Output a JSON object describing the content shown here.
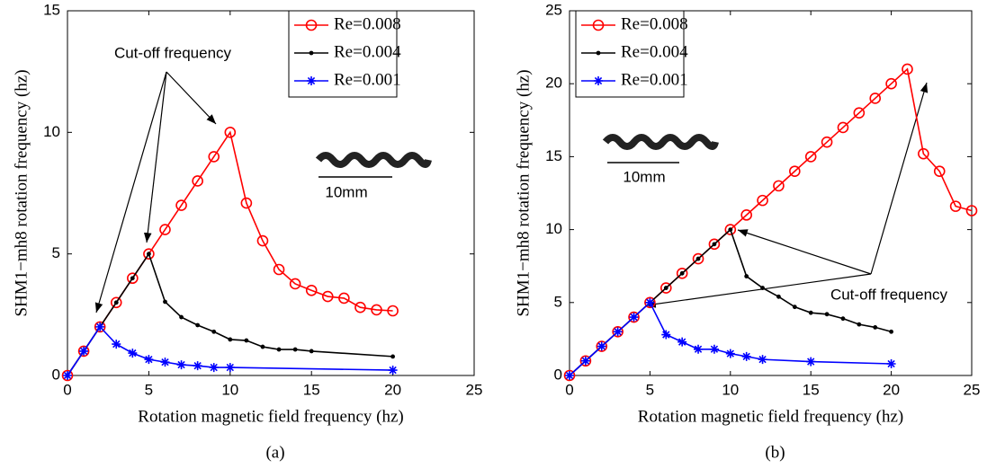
{
  "chart_data": [
    {
      "type": "line",
      "caption": "(a)",
      "xlabel": "Rotation magnetic field frequency (hz)",
      "ylabel": "SHM1−mh8 rotation frequency (hz)",
      "xlim": [
        0,
        25
      ],
      "ylim": [
        0,
        15
      ],
      "xticks": [
        0,
        5,
        10,
        15,
        20,
        25
      ],
      "yticks": [
        0,
        5,
        10,
        15
      ],
      "legend": "upper right",
      "annotation": "Cut-off frequency",
      "scale_bar_label": "10mm",
      "series": [
        {
          "name": "Re=0.008",
          "color": "#ff0000",
          "marker": "o",
          "x": [
            0,
            1,
            2,
            3,
            4,
            5,
            6,
            7,
            8,
            9,
            10,
            11,
            12,
            13,
            14,
            15,
            16,
            17,
            18,
            19,
            20
          ],
          "values": [
            0,
            1,
            2,
            3,
            4,
            5,
            6,
            7,
            8,
            9,
            10,
            7.09,
            5.54,
            4.36,
            3.77,
            3.5,
            3.25,
            3.18,
            2.8,
            2.7,
            2.66
          ]
        },
        {
          "name": "Re=0.004",
          "color": "#000000",
          "marker": ".",
          "x": [
            0,
            1,
            2,
            3,
            4,
            5,
            6,
            7,
            8,
            9,
            10,
            11,
            12,
            13,
            14,
            15,
            20
          ],
          "values": [
            0,
            1,
            2,
            3,
            4,
            5,
            3.03,
            2.4,
            2.07,
            1.8,
            1.48,
            1.44,
            1.18,
            1.07,
            1.07,
            1.0,
            0.78
          ]
        },
        {
          "name": "Re=0.001",
          "color": "#0000ff",
          "marker": "*",
          "x": [
            0,
            1,
            2,
            3,
            4,
            5,
            6,
            7,
            8,
            9,
            10,
            20
          ],
          "values": [
            0,
            1,
            2,
            1.29,
            0.92,
            0.66,
            0.55,
            0.44,
            0.4,
            0.33,
            0.33,
            0.22
          ]
        }
      ]
    },
    {
      "type": "line",
      "caption": "(b)",
      "xlabel": "Rotation magnetic field frequency (hz)",
      "ylabel": "SHM1−mh8 rotation frequency (hz)",
      "xlim": [
        0,
        25
      ],
      "ylim": [
        0,
        25
      ],
      "xticks": [
        0,
        5,
        10,
        15,
        20,
        25
      ],
      "yticks": [
        0,
        5,
        10,
        15,
        20,
        25
      ],
      "legend": "upper left",
      "annotation": "Cut-off frequency",
      "scale_bar_label": "10mm",
      "series": [
        {
          "name": "Re=0.008",
          "color": "#ff0000",
          "marker": "o",
          "x": [
            0,
            1,
            2,
            3,
            4,
            5,
            6,
            7,
            8,
            9,
            10,
            11,
            12,
            13,
            14,
            15,
            16,
            17,
            18,
            19,
            20,
            21,
            22,
            23,
            24,
            25
          ],
          "values": [
            0,
            1,
            2,
            3,
            4,
            5,
            6,
            7,
            8,
            9,
            10,
            11,
            12,
            13,
            14,
            15,
            16,
            17,
            18,
            19,
            20,
            21,
            15.2,
            14.0,
            11.6,
            11.3
          ]
        },
        {
          "name": "Re=0.004",
          "color": "#000000",
          "marker": ".",
          "x": [
            0,
            1,
            2,
            3,
            4,
            5,
            6,
            7,
            8,
            9,
            10,
            11,
            12,
            13,
            14,
            15,
            16,
            17,
            18,
            19,
            20
          ],
          "values": [
            0,
            1,
            2,
            3,
            4,
            5,
            6,
            7,
            8,
            9,
            10,
            6.8,
            6.0,
            5.4,
            4.7,
            4.3,
            4.2,
            3.9,
            3.5,
            3.3,
            3.0
          ]
        },
        {
          "name": "Re=0.001",
          "color": "#0000ff",
          "marker": "*",
          "x": [
            0,
            1,
            2,
            3,
            4,
            5,
            6,
            7,
            8,
            9,
            10,
            11,
            12,
            15,
            20
          ],
          "values": [
            0,
            1,
            2,
            3,
            4,
            5,
            2.8,
            2.3,
            1.8,
            1.8,
            1.5,
            1.3,
            1.1,
            0.95,
            0.8
          ]
        }
      ]
    }
  ]
}
